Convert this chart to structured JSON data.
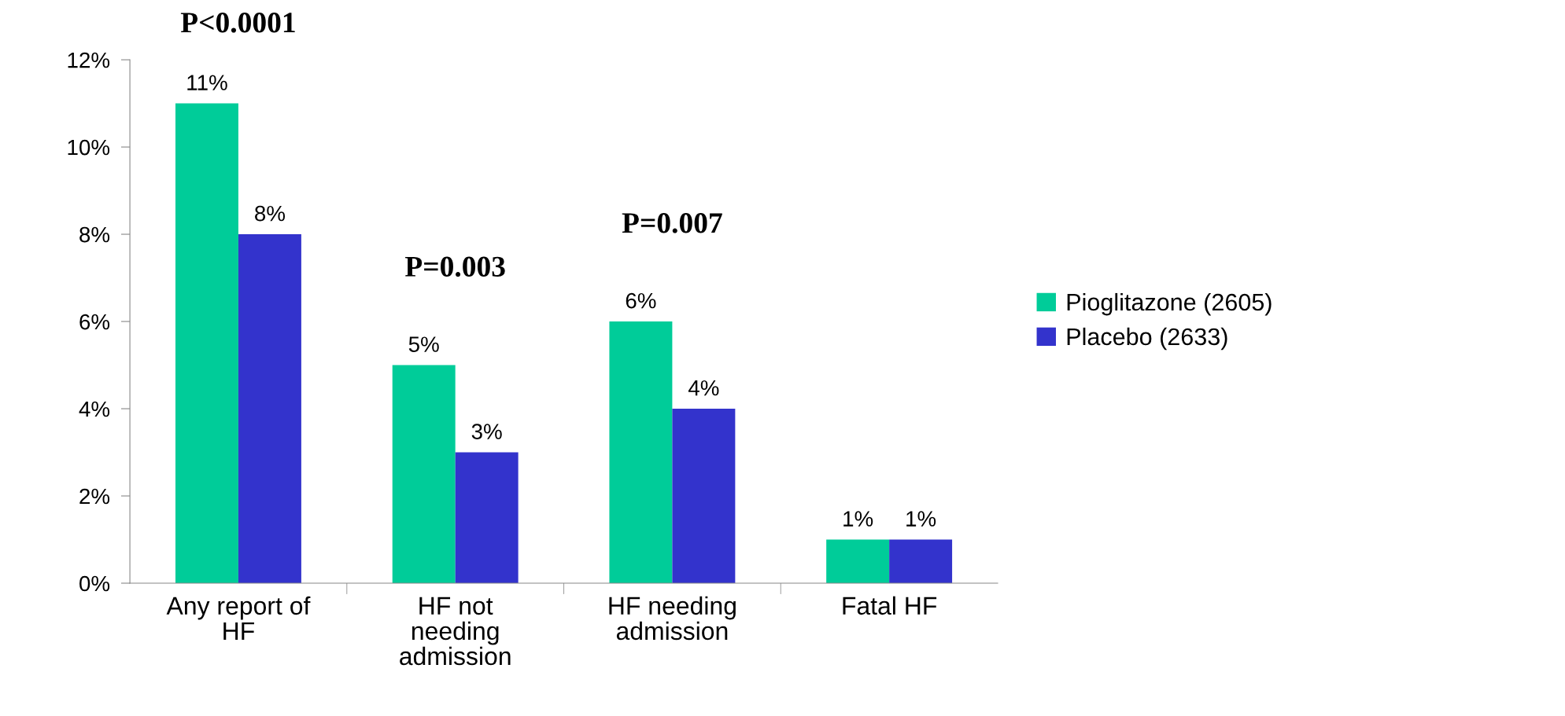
{
  "chart_data": {
    "type": "bar",
    "categories": [
      "Any report of\nHF",
      "HF not\nneeding\nadmission",
      "HF needing\nadmission",
      "Fatal HF"
    ],
    "series": [
      {
        "name": "Pioglitazone (2605)",
        "color": "#00cc99",
        "values": [
          11,
          5,
          6,
          1
        ],
        "value_labels": [
          "11%",
          "5%",
          "6%",
          "1%"
        ]
      },
      {
        "name": "Placebo (2633)",
        "color": "#3333cc",
        "values": [
          8,
          3,
          4,
          1
        ],
        "value_labels": [
          "8%",
          "3%",
          "4%",
          "1%"
        ]
      }
    ],
    "ylim": [
      0,
      12
    ],
    "yticks": [
      {
        "value": 0,
        "label": "0%"
      },
      {
        "value": 2,
        "label": "2%"
      },
      {
        "value": 4,
        "label": "4%"
      },
      {
        "value": 6,
        "label": "6%"
      },
      {
        "value": 8,
        "label": "8%"
      },
      {
        "value": 10,
        "label": "10%"
      },
      {
        "value": 12,
        "label": "12%"
      }
    ],
    "annotations": [
      "P<0.0001",
      "P=0.003",
      "P=0.007"
    ],
    "grid": false,
    "legend": "right"
  }
}
